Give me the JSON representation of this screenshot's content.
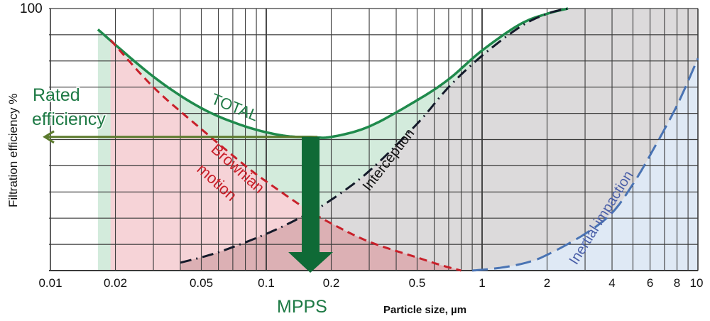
{
  "chart_data": {
    "type": "line",
    "title": "",
    "xlabel": "Particle size, µm",
    "ylabel": "Filtration efficiency %",
    "xscale": "log",
    "xlim": [
      0.01,
      10
    ],
    "ylim": [
      0,
      100
    ],
    "y_top_tick_label": "100",
    "x_tick_values": [
      0.01,
      0.02,
      0.05,
      0.1,
      0.2,
      0.5,
      1,
      2,
      4,
      6,
      8,
      10
    ],
    "x_tick_labels": [
      "0.01",
      "0.02",
      "0.05",
      "0.1",
      "0.2",
      "0.5",
      "1",
      "2",
      "4",
      "6",
      "8",
      "10"
    ],
    "grid": true,
    "series": [
      {
        "name": "TOTAL",
        "style": "solid",
        "color": "#1f8a4c",
        "x": [
          0.0166,
          0.03,
          0.05,
          0.08,
          0.12,
          0.16,
          0.2,
          0.3,
          0.5,
          0.7,
          1,
          1.5,
          2,
          2.5
        ],
        "y": [
          92,
          74,
          62,
          55,
          51.5,
          51,
          51,
          55,
          65,
          73,
          84,
          94,
          98,
          100
        ]
      },
      {
        "name": "Brownian motion",
        "style": "dashed",
        "color": "#c8202a",
        "x": [
          0.019,
          0.03,
          0.05,
          0.08,
          0.1,
          0.15,
          0.2,
          0.3,
          0.5,
          0.65,
          0.8
        ],
        "y": [
          88,
          70,
          54,
          40,
          34,
          24,
          18,
          11,
          5,
          2,
          0
        ]
      },
      {
        "name": "Interception",
        "style": "dash-dot",
        "color": "#141a2a",
        "x": [
          0.04,
          0.06,
          0.1,
          0.15,
          0.2,
          0.3,
          0.5,
          0.7,
          1,
          1.5,
          2,
          2.5
        ],
        "y": [
          3,
          7,
          14,
          21,
          27,
          38,
          56,
          70,
          82,
          93,
          98,
          100
        ]
      },
      {
        "name": "Inertial impaction",
        "style": "long-dash",
        "color": "#4a74b4",
        "x": [
          0.9,
          1.2,
          1.6,
          2,
          3,
          4,
          5,
          6,
          8,
          10
        ],
        "y": [
          0,
          1,
          3,
          6,
          14,
          22,
          33,
          44,
          63,
          81
        ]
      }
    ],
    "annotations": {
      "rated_efficiency": {
        "text_line1": "Rated",
        "text_line2": "efficiency",
        "y": 51
      },
      "mpps": {
        "text": "MPPS",
        "x": 0.16
      },
      "total_label": "TOTAL",
      "brownian_label_line1": "Brownian",
      "brownian_label_line2": "motion",
      "interception_label": "Interception",
      "inertial_label": "Inertial impaction"
    },
    "colors": {
      "total_fill": "#d3ebdc",
      "brownian_fill": "#f6d3d7",
      "interception_fill": "#dcdadb",
      "overlap_fill": "#dcb0b4",
      "inertial_fill": "#dfe9f5",
      "rated_arrow": "#5b7a2c",
      "mpps_arrow": "#0f6a36"
    }
  }
}
